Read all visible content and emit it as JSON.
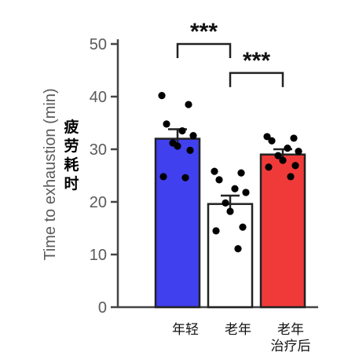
{
  "chart_data": {
    "type": "bar",
    "ylabel": "Time to exhaustion (min)",
    "ylabel_cn": [
      "疲",
      "劳",
      "耗",
      "时"
    ],
    "ylim": [
      0,
      50
    ],
    "yticks": [
      0,
      10,
      20,
      30,
      40,
      50
    ],
    "ytick_labels": [
      "0",
      "10",
      "20",
      "30",
      "40",
      "50"
    ],
    "grid": false,
    "categories": [
      {
        "label_lines": [
          "年轻"
        ],
        "value": 32,
        "sem": 1.8,
        "color": "#4040ee",
        "points": [
          40.2,
          38.5,
          34.8,
          33.5,
          32.6,
          31.2,
          30.6,
          29.8,
          24.8,
          24.6
        ]
      },
      {
        "label_lines": [
          "老年"
        ],
        "value": 19.6,
        "sem": 1.6,
        "color": "#ffffff",
        "points": [
          25.8,
          25.5,
          24.2,
          22.5,
          21.8,
          19.8,
          18.2,
          15.2,
          14.5,
          11.1
        ]
      },
      {
        "label_lines": [
          "老年",
          "治疗后"
        ],
        "value": 29,
        "sem": 1.0,
        "color": "#f03a3a",
        "points": [
          32.4,
          32.1,
          31.6,
          30.2,
          29.6,
          28.8,
          27.9,
          26.9,
          26.6,
          24.8
        ]
      }
    ],
    "significance": [
      {
        "from": 0,
        "to": 1,
        "text": "***",
        "level": 50
      },
      {
        "from": 1,
        "to": 2,
        "text": "***",
        "level": 44.5
      }
    ]
  }
}
